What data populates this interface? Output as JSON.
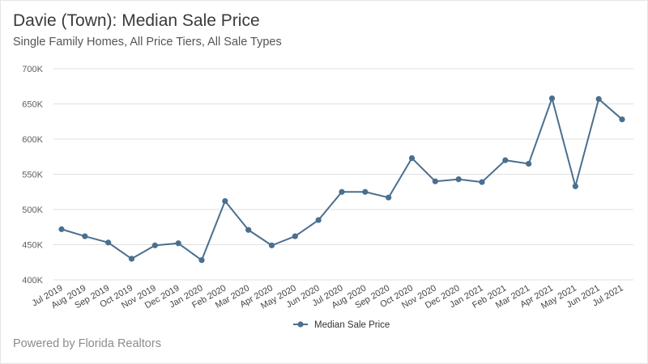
{
  "header": {
    "title": "Davie (Town): Median Sale Price",
    "subtitle": "Single Family Homes, All Price Tiers, All Sale Types"
  },
  "footer": {
    "credit": "Powered by Florida Realtors"
  },
  "colors": {
    "series": "#4a6f8f",
    "grid": "#e0e0e0"
  },
  "chart_data": {
    "type": "line",
    "title": "Davie (Town): Median Sale Price",
    "subtitle": "Single Family Homes, All Price Tiers, All Sale Types",
    "xlabel": "",
    "ylabel": "",
    "categories": [
      "Jul 2019",
      "Aug 2019",
      "Sep 2019",
      "Oct 2019",
      "Nov 2019",
      "Dec 2019",
      "Jan 2020",
      "Feb 2020",
      "Mar 2020",
      "Apr 2020",
      "May 2020",
      "Jun 2020",
      "Jul 2020",
      "Aug 2020",
      "Sep 2020",
      "Oct 2020",
      "Nov 2020",
      "Dec 2020",
      "Jan 2021",
      "Feb 2021",
      "Mar 2021",
      "Apr 2021",
      "May 2021",
      "Jun 2021",
      "Jul 2021"
    ],
    "series": [
      {
        "name": "Median Sale Price",
        "values": [
          472000,
          462000,
          453000,
          430000,
          449000,
          452000,
          428000,
          512000,
          471000,
          449000,
          462000,
          485000,
          525000,
          525000,
          517000,
          573000,
          540000,
          543000,
          539000,
          570000,
          565000,
          658000,
          533000,
          657000,
          628000
        ]
      }
    ],
    "ylim": [
      400000,
      700000
    ],
    "yticks": [
      400000,
      450000,
      500000,
      550000,
      600000,
      650000,
      700000
    ],
    "ytick_labels": [
      "400K",
      "450K",
      "500K",
      "550K",
      "600K",
      "650K",
      "700K"
    ],
    "grid": true,
    "legend": "bottom-center"
  }
}
